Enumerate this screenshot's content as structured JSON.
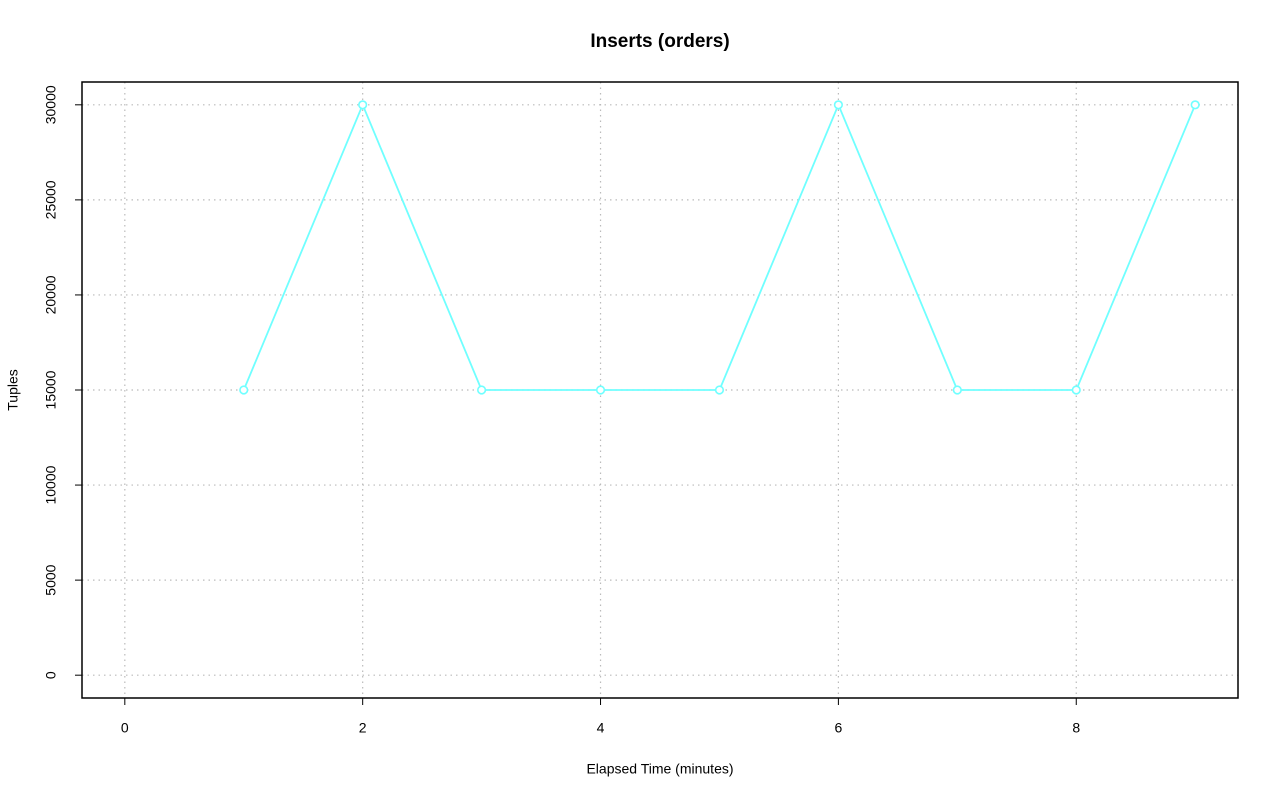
{
  "chart_data": {
    "type": "line",
    "title": "Inserts (orders)",
    "x_label": "Elapsed Time (minutes)",
    "y_label": "Tuples",
    "x": [
      1,
      2,
      3,
      4,
      5,
      6,
      7,
      8,
      9
    ],
    "values": [
      15000,
      30000,
      15000,
      15000,
      15000,
      30000,
      15000,
      15000,
      30000
    ],
    "color": "#70ffff",
    "xlim": [
      -0.36,
      9.36
    ],
    "xticks": [
      0,
      2,
      4,
      6,
      8
    ],
    "ylim": [
      -1200,
      31200
    ],
    "yticks": [
      0,
      5000,
      10000,
      15000,
      20000,
      25000,
      30000
    ],
    "grid": true
  }
}
